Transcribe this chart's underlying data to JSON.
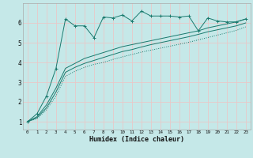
{
  "xlabel": "Humidex (Indice chaleur)",
  "bg_color": "#c5e8e8",
  "grid_color": "#e8c8c8",
  "line_color": "#1a7a6e",
  "xlim": [
    -0.5,
    23.5
  ],
  "ylim": [
    0.6,
    7.0
  ],
  "yticks": [
    1,
    2,
    3,
    4,
    5,
    6
  ],
  "xticks": [
    0,
    1,
    2,
    3,
    4,
    5,
    6,
    7,
    8,
    9,
    10,
    11,
    12,
    13,
    14,
    15,
    16,
    17,
    18,
    19,
    20,
    21,
    22,
    23
  ],
  "s1_x": [
    0,
    1,
    2,
    3,
    4,
    5,
    6,
    7,
    8,
    9,
    10,
    11,
    12,
    13,
    14,
    15,
    16,
    17,
    18,
    19,
    20,
    21,
    22,
    23
  ],
  "s1_y": [
    1.0,
    1.4,
    2.3,
    3.7,
    6.2,
    5.85,
    5.85,
    5.25,
    6.3,
    6.25,
    6.4,
    6.1,
    6.6,
    6.35,
    6.35,
    6.35,
    6.3,
    6.35,
    5.6,
    6.25,
    6.1,
    6.05,
    6.05,
    6.2
  ],
  "s2_x": [
    0,
    1,
    2,
    3,
    4,
    5,
    6,
    7,
    8,
    9,
    10,
    11,
    12,
    13,
    14,
    15,
    16,
    17,
    18,
    19,
    20,
    21,
    22,
    23
  ],
  "s2_y": [
    1.0,
    1.25,
    1.85,
    2.7,
    3.7,
    3.95,
    4.2,
    4.35,
    4.5,
    4.65,
    4.8,
    4.9,
    5.0,
    5.1,
    5.2,
    5.3,
    5.4,
    5.5,
    5.6,
    5.75,
    5.85,
    5.95,
    6.05,
    6.2
  ],
  "s3_x": [
    0,
    1,
    2,
    3,
    4,
    5,
    6,
    7,
    8,
    9,
    10,
    11,
    12,
    13,
    14,
    15,
    16,
    17,
    18,
    19,
    20,
    21,
    22,
    23
  ],
  "s3_y": [
    1.0,
    1.2,
    1.7,
    2.5,
    3.5,
    3.75,
    3.95,
    4.1,
    4.25,
    4.4,
    4.55,
    4.65,
    4.78,
    4.9,
    5.0,
    5.1,
    5.2,
    5.3,
    5.42,
    5.55,
    5.65,
    5.75,
    5.85,
    6.0
  ],
  "s4_x": [
    0,
    1,
    2,
    3,
    4,
    5,
    6,
    7,
    8,
    9,
    10,
    11,
    12,
    13,
    14,
    15,
    16,
    17,
    18,
    19,
    20,
    21,
    22,
    23
  ],
  "s4_y": [
    1.0,
    1.15,
    1.6,
    2.3,
    3.3,
    3.55,
    3.75,
    3.9,
    4.0,
    4.15,
    4.28,
    4.4,
    4.52,
    4.62,
    4.72,
    4.82,
    4.92,
    5.02,
    5.14,
    5.26,
    5.38,
    5.5,
    5.62,
    5.8
  ]
}
